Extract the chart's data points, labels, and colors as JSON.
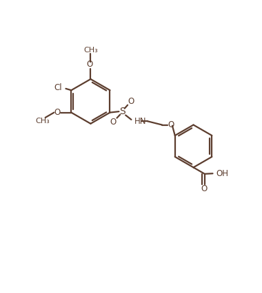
{
  "bg_color": "#ffffff",
  "line_color": "#5c3d2e",
  "line_width": 1.6,
  "text_color": "#5c3d2e",
  "font_size": 8.5,
  "figsize": [
    3.8,
    4.26
  ],
  "dpi": 100,
  "xlim": [
    0,
    10
  ],
  "ylim": [
    0,
    10.5
  ]
}
